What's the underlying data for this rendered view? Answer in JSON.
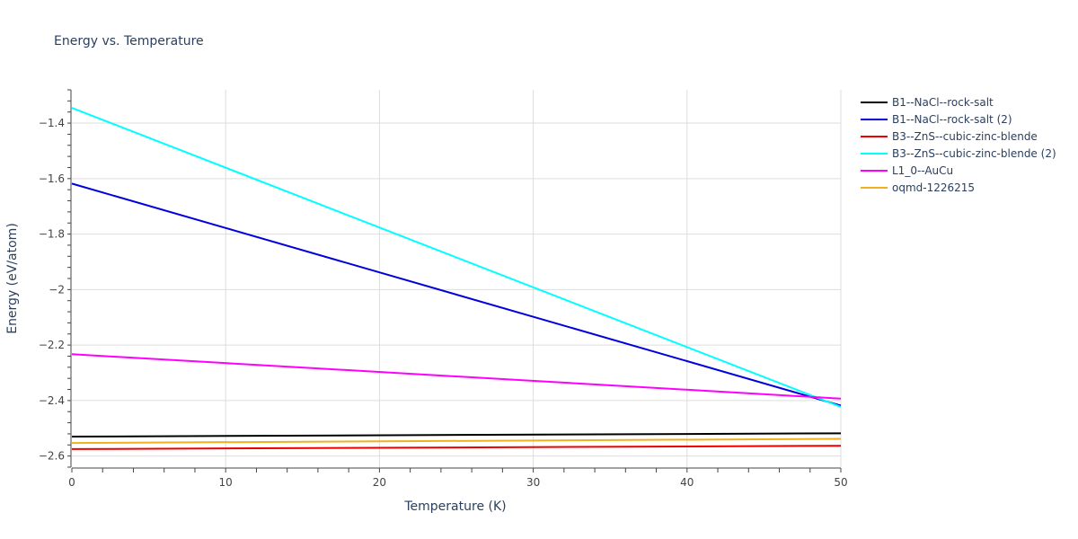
{
  "chart_data": {
    "type": "line",
    "title": "Energy vs. Temperature",
    "xlabel": "Temperature (K)",
    "ylabel": "Energy (eV/atom)",
    "xlim": [
      0,
      50
    ],
    "ylim": [
      -2.64,
      -1.28
    ],
    "x_ticks": [
      0,
      10,
      20,
      30,
      40,
      50
    ],
    "x_tick_labels": [
      "0",
      "10",
      "20",
      "30",
      "40",
      "50"
    ],
    "y_ticks": [
      -1.4,
      -1.6,
      -1.8,
      -2.0,
      -2.2,
      -2.4,
      -2.6
    ],
    "y_tick_labels": [
      "−1.4",
      "−1.6",
      "−1.8",
      "−2",
      "−2.2",
      "−2.4",
      "−2.6"
    ],
    "grid": true,
    "legend_position": "right",
    "series": [
      {
        "name": "B1--NaCl--rock-salt",
        "color": "#000000",
        "x": [
          0,
          50
        ],
        "y": [
          -2.53,
          -2.518
        ]
      },
      {
        "name": "B1--NaCl--rock-salt (2)",
        "color": "#0000dd",
        "x": [
          0,
          50
        ],
        "y": [
          -1.618,
          -2.418
        ]
      },
      {
        "name": "B3--ZnS--cubic-zinc-blende",
        "color": "#ee0000",
        "x": [
          0,
          50
        ],
        "y": [
          -2.575,
          -2.563
        ]
      },
      {
        "name": "B3--ZnS--cubic-zinc-blende (2)",
        "color": "#00ffff",
        "x": [
          0,
          50
        ],
        "y": [
          -1.345,
          -2.423
        ]
      },
      {
        "name": "L1_0--AuCu",
        "color": "#ff00ff",
        "x": [
          0,
          50
        ],
        "y": [
          -2.233,
          -2.393
        ]
      },
      {
        "name": "oqmd-1226215",
        "color": "#f0b020",
        "x": [
          0,
          50
        ],
        "y": [
          -2.553,
          -2.538
        ]
      }
    ]
  }
}
